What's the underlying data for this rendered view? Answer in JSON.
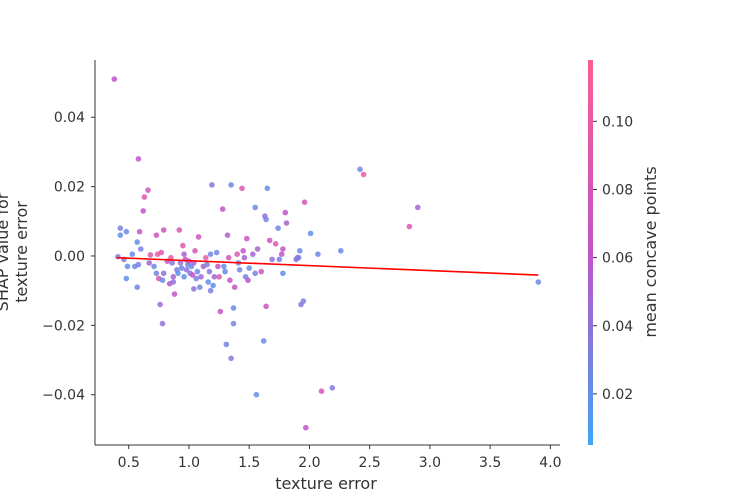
{
  "chart_data": {
    "type": "scatter",
    "title": "",
    "xlabel": "texture error",
    "ylabel_lines": [
      "SHAP value for",
      "texture error"
    ],
    "xlim": [
      0.22,
      4.08
    ],
    "ylim": [
      -0.0545,
      0.0565
    ],
    "xticks": [
      0.5,
      1.0,
      1.5,
      2.0,
      2.5,
      3.0,
      3.5,
      4.0
    ],
    "xtick_labels": [
      "0.5",
      "1.0",
      "1.5",
      "2.0",
      "2.5",
      "3.0",
      "3.5",
      "4.0"
    ],
    "yticks": [
      -0.04,
      -0.02,
      0.0,
      0.02,
      0.04
    ],
    "ytick_labels": [
      "−0.04",
      "−0.02",
      "0.00",
      "0.02",
      "0.04"
    ],
    "colorbar": {
      "label": "mean concave points",
      "range": [
        0.005,
        0.118
      ],
      "ticks": [
        0.02,
        0.04,
        0.06,
        0.08,
        0.1
      ],
      "tick_labels": [
        "0.02",
        "0.04",
        "0.06",
        "0.08",
        "0.10"
      ],
      "color_low": "#3ea5f5",
      "color_mid": "#c153c8",
      "color_high": "#fb5d93"
    },
    "trend_line": {
      "x": [
        0.4,
        3.9
      ],
      "y": [
        -0.0005,
        -0.0055
      ],
      "color": "#ff0000"
    },
    "grid": false,
    "points": [
      {
        "x": 0.38,
        "y": 0.051,
        "c": 0.06
      },
      {
        "x": 0.58,
        "y": 0.028,
        "c": 0.065
      },
      {
        "x": 0.66,
        "y": 0.019,
        "c": 0.08
      },
      {
        "x": 0.63,
        "y": 0.017,
        "c": 0.085
      },
      {
        "x": 0.62,
        "y": 0.013,
        "c": 0.06
      },
      {
        "x": 0.43,
        "y": 0.008,
        "c": 0.03
      },
      {
        "x": 0.48,
        "y": 0.007,
        "c": 0.025
      },
      {
        "x": 0.43,
        "y": 0.006,
        "c": 0.02
      },
      {
        "x": 0.59,
        "y": 0.007,
        "c": 0.07
      },
      {
        "x": 0.57,
        "y": 0.004,
        "c": 0.02
      },
      {
        "x": 0.6,
        "y": 0.002,
        "c": 0.03
      },
      {
        "x": 0.53,
        "y": 0.0005,
        "c": 0.02
      },
      {
        "x": 0.41,
        "y": -0.0002,
        "c": 0.03
      },
      {
        "x": 0.46,
        "y": -0.001,
        "c": 0.04
      },
      {
        "x": 0.49,
        "y": -0.003,
        "c": 0.02
      },
      {
        "x": 0.55,
        "y": -0.003,
        "c": 0.025
      },
      {
        "x": 0.58,
        "y": -0.0025,
        "c": 0.03
      },
      {
        "x": 0.48,
        "y": -0.0065,
        "c": 0.02
      },
      {
        "x": 0.57,
        "y": -0.009,
        "c": 0.025
      },
      {
        "x": 0.68,
        "y": 0.0003,
        "c": 0.09
      },
      {
        "x": 0.67,
        "y": -0.002,
        "c": 0.05
      },
      {
        "x": 0.73,
        "y": 0.006,
        "c": 0.075
      },
      {
        "x": 0.74,
        "y": 0.0005,
        "c": 0.1
      },
      {
        "x": 0.77,
        "y": 0.001,
        "c": 0.09
      },
      {
        "x": 0.79,
        "y": 0.0075,
        "c": 0.07
      },
      {
        "x": 0.71,
        "y": -0.003,
        "c": 0.025
      },
      {
        "x": 0.73,
        "y": -0.005,
        "c": 0.03
      },
      {
        "x": 0.75,
        "y": -0.0065,
        "c": 0.08
      },
      {
        "x": 0.79,
        "y": -0.005,
        "c": 0.04
      },
      {
        "x": 0.78,
        "y": -0.007,
        "c": 0.025
      },
      {
        "x": 0.76,
        "y": -0.014,
        "c": 0.045
      },
      {
        "x": 0.78,
        "y": -0.0195,
        "c": 0.04
      },
      {
        "x": 0.82,
        "y": -0.0015,
        "c": 0.06
      },
      {
        "x": 0.85,
        "y": -0.0005,
        "c": 0.1
      },
      {
        "x": 0.86,
        "y": -0.002,
        "c": 0.04
      },
      {
        "x": 0.87,
        "y": -0.006,
        "c": 0.05
      },
      {
        "x": 0.84,
        "y": -0.008,
        "c": 0.06
      },
      {
        "x": 0.87,
        "y": -0.0075,
        "c": 0.04
      },
      {
        "x": 0.88,
        "y": -0.011,
        "c": 0.065
      },
      {
        "x": 0.92,
        "y": 0.0075,
        "c": 0.08
      },
      {
        "x": 0.9,
        "y": -0.004,
        "c": 0.03
      },
      {
        "x": 0.91,
        "y": -0.005,
        "c": 0.02
      },
      {
        "x": 0.93,
        "y": -0.002,
        "c": 0.045
      },
      {
        "x": 0.94,
        "y": -0.0035,
        "c": 0.025
      },
      {
        "x": 0.95,
        "y": 0.003,
        "c": 0.09
      },
      {
        "x": 0.96,
        "y": 0.0005,
        "c": 0.05
      },
      {
        "x": 0.97,
        "y": -0.001,
        "c": 0.07
      },
      {
        "x": 0.98,
        "y": -0.004,
        "c": 0.04
      },
      {
        "x": 0.96,
        "y": -0.006,
        "c": 0.02
      },
      {
        "x": 0.99,
        "y": -0.0025,
        "c": 0.025
      },
      {
        "x": 1.0,
        "y": -0.0015,
        "c": 0.06
      },
      {
        "x": 1.01,
        "y": -0.005,
        "c": 0.035
      },
      {
        "x": 1.02,
        "y": -0.003,
        "c": 0.02
      },
      {
        "x": 1.03,
        "y": -0.0055,
        "c": 0.065
      },
      {
        "x": 1.04,
        "y": -0.002,
        "c": 0.05
      },
      {
        "x": 1.05,
        "y": 0.0015,
        "c": 0.08
      },
      {
        "x": 1.04,
        "y": -0.0095,
        "c": 0.04
      },
      {
        "x": 1.06,
        "y": -0.0065,
        "c": 0.03
      },
      {
        "x": 1.07,
        "y": -0.0045,
        "c": 0.025
      },
      {
        "x": 1.08,
        "y": 0.0055,
        "c": 0.07
      },
      {
        "x": 1.09,
        "y": -0.009,
        "c": 0.025
      },
      {
        "x": 1.1,
        "y": -0.006,
        "c": 0.045
      },
      {
        "x": 1.12,
        "y": -0.003,
        "c": 0.05
      },
      {
        "x": 1.14,
        "y": -0.0005,
        "c": 0.1
      },
      {
        "x": 1.15,
        "y": -0.0025,
        "c": 0.03
      },
      {
        "x": 1.16,
        "y": -0.0075,
        "c": 0.02
      },
      {
        "x": 1.17,
        "y": -0.0045,
        "c": 0.035
      },
      {
        "x": 1.18,
        "y": 0.0005,
        "c": 0.03
      },
      {
        "x": 1.18,
        "y": -0.01,
        "c": 0.03
      },
      {
        "x": 1.19,
        "y": 0.0205,
        "c": 0.04
      },
      {
        "x": 1.2,
        "y": -0.0085,
        "c": 0.02
      },
      {
        "x": 1.21,
        "y": -0.006,
        "c": 0.05
      },
      {
        "x": 1.23,
        "y": 0.001,
        "c": 0.025
      },
      {
        "x": 1.24,
        "y": -0.003,
        "c": 0.06
      },
      {
        "x": 1.25,
        "y": -0.006,
        "c": 0.085
      },
      {
        "x": 1.26,
        "y": -0.016,
        "c": 0.06
      },
      {
        "x": 1.28,
        "y": 0.0135,
        "c": 0.065
      },
      {
        "x": 1.29,
        "y": -0.003,
        "c": 0.02
      },
      {
        "x": 1.3,
        "y": -0.0045,
        "c": 0.025
      },
      {
        "x": 1.31,
        "y": -0.0255,
        "c": 0.03
      },
      {
        "x": 1.32,
        "y": 0.006,
        "c": 0.05
      },
      {
        "x": 1.33,
        "y": -0.0005,
        "c": 0.08
      },
      {
        "x": 1.34,
        "y": -0.007,
        "c": 0.07
      },
      {
        "x": 1.35,
        "y": 0.0205,
        "c": 0.025
      },
      {
        "x": 1.35,
        "y": -0.0295,
        "c": 0.04
      },
      {
        "x": 1.37,
        "y": -0.015,
        "c": 0.025
      },
      {
        "x": 1.37,
        "y": -0.0195,
        "c": 0.03
      },
      {
        "x": 1.38,
        "y": -0.009,
        "c": 0.07
      },
      {
        "x": 1.4,
        "y": 0.0005,
        "c": 0.09
      },
      {
        "x": 1.41,
        "y": -0.002,
        "c": 0.03
      },
      {
        "x": 1.42,
        "y": -0.004,
        "c": 0.025
      },
      {
        "x": 1.44,
        "y": 0.0195,
        "c": 0.085
      },
      {
        "x": 1.45,
        "y": 0.0015,
        "c": 0.06
      },
      {
        "x": 1.46,
        "y": -0.0005,
        "c": 0.05
      },
      {
        "x": 1.47,
        "y": -0.006,
        "c": 0.03
      },
      {
        "x": 1.48,
        "y": 0.005,
        "c": 0.07
      },
      {
        "x": 1.49,
        "y": -0.007,
        "c": 0.06
      },
      {
        "x": 1.5,
        "y": -0.0035,
        "c": 0.02
      },
      {
        "x": 1.53,
        "y": 0.0005,
        "c": 0.05
      },
      {
        "x": 1.55,
        "y": 0.014,
        "c": 0.025
      },
      {
        "x": 1.55,
        "y": -0.005,
        "c": 0.03
      },
      {
        "x": 1.57,
        "y": 0.002,
        "c": 0.05
      },
      {
        "x": 1.56,
        "y": -0.04,
        "c": 0.02
      },
      {
        "x": 1.6,
        "y": -0.0045,
        "c": 0.07
      },
      {
        "x": 1.62,
        "y": -0.0245,
        "c": 0.025
      },
      {
        "x": 1.63,
        "y": 0.0115,
        "c": 0.04
      },
      {
        "x": 1.64,
        "y": 0.0105,
        "c": 0.03
      },
      {
        "x": 1.64,
        "y": -0.0145,
        "c": 0.07
      },
      {
        "x": 1.65,
        "y": 0.0195,
        "c": 0.02
      },
      {
        "x": 1.67,
        "y": 0.0045,
        "c": 0.07
      },
      {
        "x": 1.69,
        "y": -0.001,
        "c": 0.04
      },
      {
        "x": 1.72,
        "y": 0.0035,
        "c": 0.09
      },
      {
        "x": 1.74,
        "y": 0.008,
        "c": 0.025
      },
      {
        "x": 1.75,
        "y": -0.001,
        "c": 0.03
      },
      {
        "x": 1.77,
        "y": 0.0005,
        "c": 0.06
      },
      {
        "x": 1.78,
        "y": 0.002,
        "c": 0.06
      },
      {
        "x": 1.78,
        "y": -0.005,
        "c": 0.02
      },
      {
        "x": 1.8,
        "y": 0.0125,
        "c": 0.06
      },
      {
        "x": 1.81,
        "y": 0.0095,
        "c": 0.05
      },
      {
        "x": 1.89,
        "y": -0.001,
        "c": 0.04
      },
      {
        "x": 1.9,
        "y": -0.0005,
        "c": 0.05
      },
      {
        "x": 1.91,
        "y": -0.0005,
        "c": 0.03
      },
      {
        "x": 1.92,
        "y": 0.0015,
        "c": 0.025
      },
      {
        "x": 1.93,
        "y": -0.014,
        "c": 0.04
      },
      {
        "x": 1.95,
        "y": -0.013,
        "c": 0.03
      },
      {
        "x": 1.96,
        "y": 0.0155,
        "c": 0.08
      },
      {
        "x": 1.97,
        "y": -0.0495,
        "c": 0.06
      },
      {
        "x": 2.01,
        "y": 0.0065,
        "c": 0.02
      },
      {
        "x": 2.07,
        "y": 0.0005,
        "c": 0.025
      },
      {
        "x": 2.1,
        "y": -0.039,
        "c": 0.08
      },
      {
        "x": 2.19,
        "y": -0.038,
        "c": 0.035
      },
      {
        "x": 2.26,
        "y": 0.0015,
        "c": 0.025
      },
      {
        "x": 2.42,
        "y": 0.025,
        "c": 0.025
      },
      {
        "x": 2.45,
        "y": 0.0235,
        "c": 0.1
      },
      {
        "x": 2.83,
        "y": 0.0085,
        "c": 0.085
      },
      {
        "x": 2.9,
        "y": 0.014,
        "c": 0.05
      },
      {
        "x": 3.9,
        "y": -0.0075,
        "c": 0.025
      }
    ]
  }
}
